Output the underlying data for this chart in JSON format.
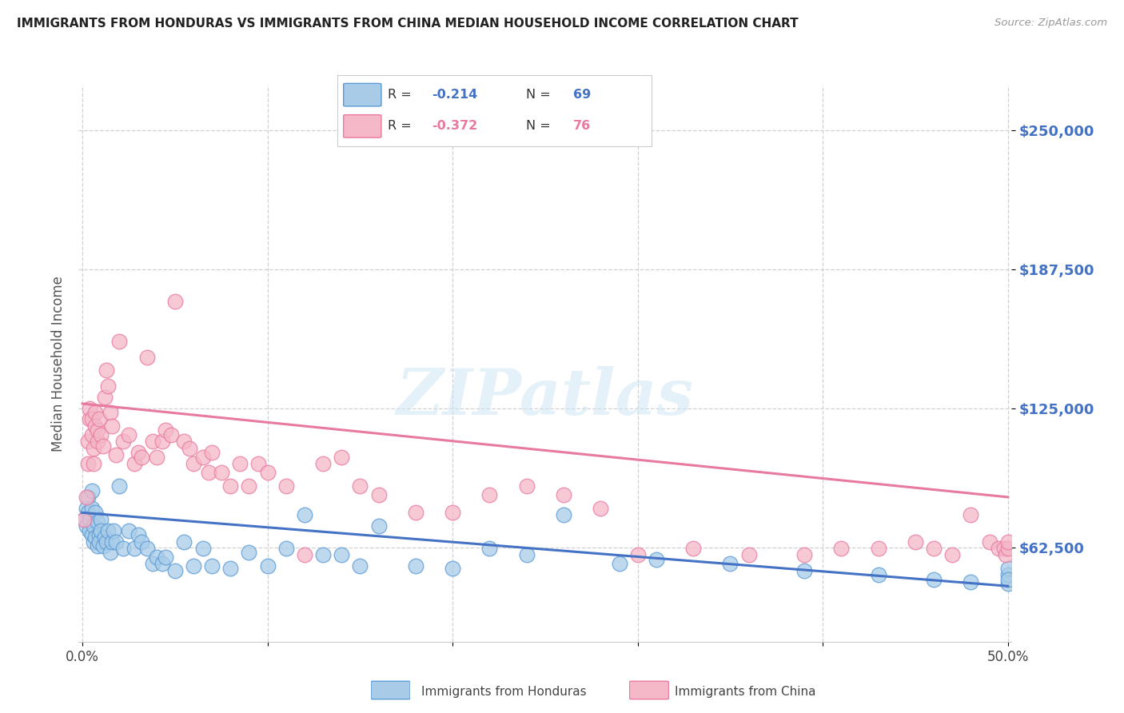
{
  "title": "IMMIGRANTS FROM HONDURAS VS IMMIGRANTS FROM CHINA MEDIAN HOUSEHOLD INCOME CORRELATION CHART",
  "source": "Source: ZipAtlas.com",
  "ylabel": "Median Household Income",
  "ytick_labels": [
    "$62,500",
    "$125,000",
    "$187,500",
    "$250,000"
  ],
  "ytick_values": [
    62500,
    125000,
    187500,
    250000
  ],
  "ylim": [
    20000,
    270000
  ],
  "xlim": [
    -0.002,
    0.502
  ],
  "legend_r1": "R = ",
  "legend_v1": "-0.214",
  "legend_n1_label": "  N = ",
  "legend_n1_val": "69",
  "legend_r2": "R = ",
  "legend_v2": "-0.372",
  "legend_n2_label": "  N = ",
  "legend_n2_val": "76",
  "legend_label1": "Immigrants from Honduras",
  "legend_label2": "Immigrants from China",
  "color_blue_fill": "#a8cce8",
  "color_blue_edge": "#5b9bd5",
  "color_blue_line": "#4472c4",
  "color_pink_fill": "#f4b8c8",
  "color_pink_edge": "#e97aa0",
  "color_pink_line": "#e87aa0",
  "color_title": "#222222",
  "color_ytick": "#4472c4",
  "watermark": "ZIPatlas",
  "background_color": "#ffffff",
  "grid_color": "#d0d0d0",
  "blue_x": [
    0.001,
    0.002,
    0.002,
    0.003,
    0.003,
    0.004,
    0.004,
    0.005,
    0.005,
    0.005,
    0.006,
    0.006,
    0.007,
    0.007,
    0.008,
    0.008,
    0.009,
    0.009,
    0.01,
    0.01,
    0.011,
    0.012,
    0.013,
    0.014,
    0.015,
    0.016,
    0.017,
    0.018,
    0.02,
    0.022,
    0.025,
    0.028,
    0.03,
    0.032,
    0.035,
    0.038,
    0.04,
    0.043,
    0.045,
    0.05,
    0.055,
    0.06,
    0.065,
    0.07,
    0.08,
    0.09,
    0.1,
    0.11,
    0.12,
    0.13,
    0.14,
    0.15,
    0.16,
    0.18,
    0.2,
    0.22,
    0.24,
    0.26,
    0.29,
    0.31,
    0.35,
    0.39,
    0.43,
    0.46,
    0.48,
    0.5,
    0.5,
    0.5,
    0.5
  ],
  "blue_y": [
    75000,
    72000,
    80000,
    78000,
    85000,
    70000,
    75000,
    68000,
    80000,
    88000,
    65000,
    72000,
    67000,
    78000,
    63000,
    74000,
    68000,
    65000,
    75000,
    70000,
    63000,
    67000,
    65000,
    70000,
    60000,
    65000,
    70000,
    65000,
    90000,
    62000,
    70000,
    62000,
    68000,
    65000,
    62000,
    55000,
    58000,
    55000,
    58000,
    52000,
    65000,
    54000,
    62000,
    54000,
    53000,
    60000,
    54000,
    62000,
    77000,
    59000,
    59000,
    54000,
    72000,
    54000,
    53000,
    62000,
    59000,
    77000,
    55000,
    57000,
    55000,
    52000,
    50000,
    48000,
    47000,
    46000,
    50000,
    53000,
    48000
  ],
  "pink_x": [
    0.001,
    0.002,
    0.003,
    0.003,
    0.004,
    0.004,
    0.005,
    0.005,
    0.006,
    0.006,
    0.007,
    0.007,
    0.008,
    0.008,
    0.009,
    0.01,
    0.011,
    0.012,
    0.013,
    0.014,
    0.015,
    0.016,
    0.018,
    0.02,
    0.022,
    0.025,
    0.028,
    0.03,
    0.032,
    0.035,
    0.038,
    0.04,
    0.043,
    0.045,
    0.048,
    0.05,
    0.055,
    0.058,
    0.06,
    0.065,
    0.068,
    0.07,
    0.075,
    0.08,
    0.085,
    0.09,
    0.095,
    0.1,
    0.11,
    0.12,
    0.13,
    0.14,
    0.15,
    0.16,
    0.18,
    0.2,
    0.22,
    0.24,
    0.26,
    0.28,
    0.3,
    0.33,
    0.36,
    0.39,
    0.41,
    0.43,
    0.45,
    0.46,
    0.47,
    0.48,
    0.49,
    0.495,
    0.498,
    0.499,
    0.5,
    0.5
  ],
  "pink_y": [
    75000,
    85000,
    100000,
    110000,
    120000,
    125000,
    113000,
    120000,
    100000,
    107000,
    123000,
    117000,
    110000,
    115000,
    120000,
    113000,
    108000,
    130000,
    142000,
    135000,
    123000,
    117000,
    104000,
    155000,
    110000,
    113000,
    100000,
    105000,
    103000,
    148000,
    110000,
    103000,
    110000,
    115000,
    113000,
    173000,
    110000,
    107000,
    100000,
    103000,
    96000,
    105000,
    96000,
    90000,
    100000,
    90000,
    100000,
    96000,
    90000,
    59000,
    100000,
    103000,
    90000,
    86000,
    78000,
    78000,
    86000,
    90000,
    86000,
    80000,
    59000,
    62000,
    59000,
    59000,
    62000,
    62000,
    65000,
    62000,
    59000,
    77000,
    65000,
    62000,
    62000,
    59000,
    62000,
    65000
  ],
  "blue_trend_x": [
    0.0,
    0.5
  ],
  "blue_trend_y": [
    78000,
    45000
  ],
  "pink_trend_x": [
    0.0,
    0.5
  ],
  "pink_trend_y": [
    127000,
    85000
  ]
}
